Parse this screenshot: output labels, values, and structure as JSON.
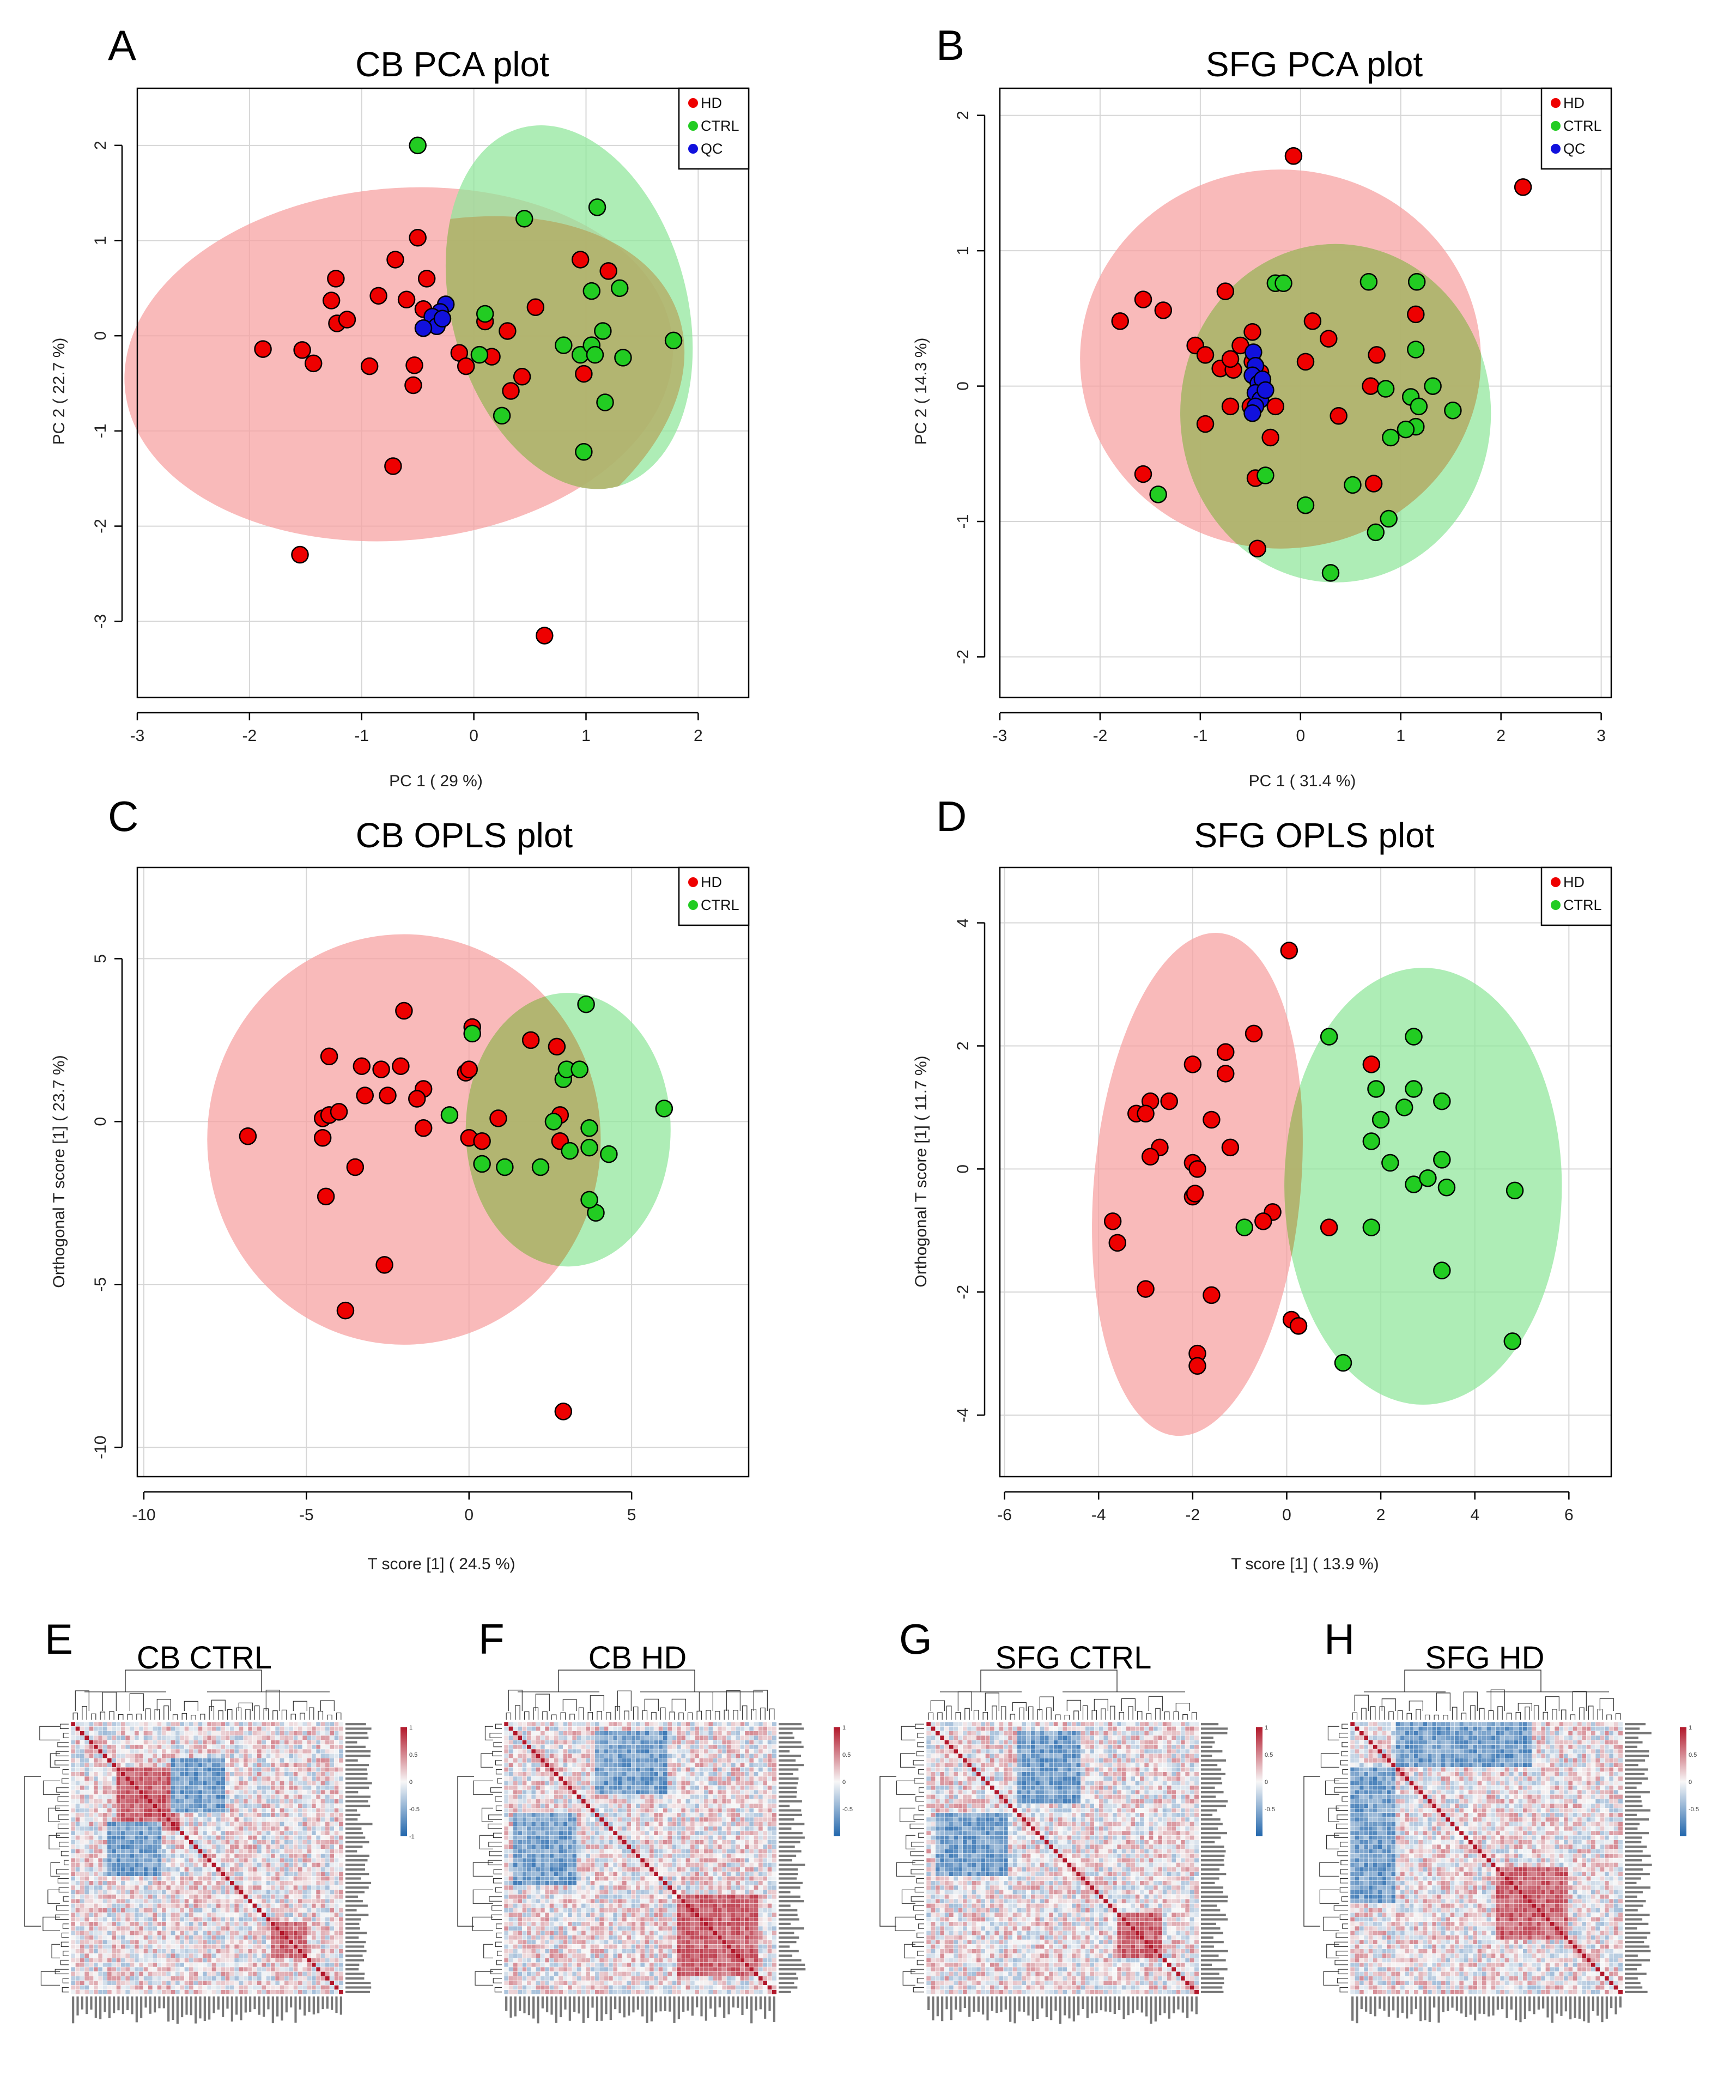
{
  "panels": [
    {
      "letter": "A",
      "title": "CB PCA plot",
      "xlabel": "PC 1 ( 29 %)",
      "ylabel": "PC 2 ( 22.7 %)",
      "xlim": [
        -3,
        2.45
      ],
      "ylim": [
        -3.8,
        2.6
      ],
      "xticks": [
        -3,
        -2,
        -1,
        0,
        1,
        2
      ],
      "yticks": [
        -3,
        -2,
        -1,
        0,
        1,
        2
      ],
      "legend": [
        "HD",
        "CTRL",
        "QC"
      ],
      "ellipses": [
        {
          "group": "HD",
          "cx": -0.67,
          "cy": -0.3,
          "rx": 2.45,
          "ry": 1.85,
          "angle": 5
        },
        {
          "group": "CTRL",
          "cx": 0.85,
          "cy": 0.3,
          "rx": 1.05,
          "ry": 1.95,
          "angle": 15
        }
      ],
      "points": {
        "HD": [
          [
            -0.5,
            1.03
          ],
          [
            -0.7,
            0.8
          ],
          [
            -1.23,
            0.6
          ],
          [
            -1.27,
            0.37
          ],
          [
            -1.22,
            0.13
          ],
          [
            -1.13,
            0.17
          ],
          [
            -0.42,
            0.6
          ],
          [
            -0.85,
            0.42
          ],
          [
            -0.6,
            0.38
          ],
          [
            -0.45,
            0.28
          ],
          [
            -0.35,
            0.18
          ],
          [
            -1.88,
            -0.14
          ],
          [
            -1.53,
            -0.15
          ],
          [
            -1.43,
            -0.29
          ],
          [
            -0.93,
            -0.32
          ],
          [
            -0.53,
            -0.31
          ],
          [
            -0.54,
            -0.52
          ],
          [
            -0.72,
            -1.37
          ],
          [
            -1.55,
            -2.3
          ],
          [
            0.63,
            -3.15
          ],
          [
            0.1,
            0.15
          ],
          [
            0.16,
            -0.22
          ],
          [
            0.3,
            0.05
          ],
          [
            -0.13,
            -0.18
          ],
          [
            -0.07,
            -0.32
          ],
          [
            0.43,
            -0.43
          ],
          [
            0.33,
            -0.58
          ],
          [
            0.55,
            0.3
          ],
          [
            0.95,
            0.8
          ],
          [
            1.2,
            0.68
          ],
          [
            0.98,
            -0.4
          ]
        ],
        "CTRL": [
          [
            -0.5,
            2.0
          ],
          [
            0.45,
            1.23
          ],
          [
            1.1,
            1.35
          ],
          [
            1.05,
            0.47
          ],
          [
            1.3,
            0.5
          ],
          [
            0.1,
            0.23
          ],
          [
            0.05,
            -0.2
          ],
          [
            0.25,
            -0.84
          ],
          [
            0.8,
            -0.1
          ],
          [
            0.95,
            -0.2
          ],
          [
            1.05,
            -0.1
          ],
          [
            1.15,
            0.05
          ],
          [
            1.08,
            -0.2
          ],
          [
            1.33,
            -0.23
          ],
          [
            1.17,
            -0.7
          ],
          [
            0.98,
            -1.22
          ],
          [
            1.78,
            -0.05
          ]
        ],
        "QC": [
          [
            -0.25,
            0.33
          ],
          [
            -0.3,
            0.25
          ],
          [
            -0.37,
            0.2
          ],
          [
            -0.33,
            0.1
          ],
          [
            -0.45,
            0.08
          ],
          [
            -0.28,
            0.18
          ]
        ]
      }
    },
    {
      "letter": "B",
      "title": "SFG PCA plot",
      "xlabel": "PC 1 ( 31.4 %)",
      "ylabel": "PC 2 ( 14.3 %)",
      "xlim": [
        -3,
        3.1
      ],
      "ylim": [
        -2.3,
        2.2
      ],
      "xticks": [
        -3,
        -2,
        -1,
        0,
        1,
        2,
        3
      ],
      "yticks": [
        -2,
        -1,
        0,
        1,
        2
      ],
      "legend": [
        "HD",
        "CTRL",
        "QC"
      ],
      "ellipses": [
        {
          "group": "HD",
          "cx": -0.2,
          "cy": 0.2,
          "rx": 2.0,
          "ry": 1.4,
          "angle": 0
        },
        {
          "group": "CTRL",
          "cx": 0.35,
          "cy": -0.2,
          "rx": 1.55,
          "ry": 1.25,
          "angle": 0
        }
      ],
      "points": {
        "HD": [
          [
            -0.07,
            1.7
          ],
          [
            2.22,
            1.47
          ],
          [
            -1.57,
            0.64
          ],
          [
            -1.37,
            0.56
          ],
          [
            -1.8,
            0.48
          ],
          [
            -1.05,
            0.3
          ],
          [
            -0.75,
            0.7
          ],
          [
            -0.95,
            0.23
          ],
          [
            -0.8,
            0.13
          ],
          [
            -0.67,
            0.12
          ],
          [
            -0.7,
            0.2
          ],
          [
            -0.6,
            0.3
          ],
          [
            -0.48,
            0.4
          ],
          [
            -0.48,
            0.18
          ],
          [
            -0.4,
            0.1
          ],
          [
            -0.95,
            -0.28
          ],
          [
            -0.7,
            -0.15
          ],
          [
            -0.5,
            -0.15
          ],
          [
            -0.25,
            -0.15
          ],
          [
            -0.3,
            -0.38
          ],
          [
            -0.45,
            -0.68
          ],
          [
            -0.43,
            -1.2
          ],
          [
            -1.57,
            -0.65
          ],
          [
            0.12,
            0.48
          ],
          [
            0.28,
            0.35
          ],
          [
            0.05,
            0.18
          ],
          [
            0.38,
            -0.22
          ],
          [
            0.7,
            0.0
          ],
          [
            0.76,
            0.23
          ],
          [
            1.15,
            0.53
          ],
          [
            0.73,
            -0.72
          ]
        ],
        "CTRL": [
          [
            -0.25,
            0.76
          ],
          [
            -0.17,
            0.76
          ],
          [
            0.68,
            0.77
          ],
          [
            1.16,
            0.77
          ],
          [
            1.15,
            0.27
          ],
          [
            0.85,
            -0.02
          ],
          [
            1.32,
            0.0
          ],
          [
            1.1,
            -0.08
          ],
          [
            1.18,
            -0.15
          ],
          [
            1.52,
            -0.18
          ],
          [
            1.15,
            -0.3
          ],
          [
            1.05,
            -0.32
          ],
          [
            0.9,
            -0.38
          ],
          [
            -0.35,
            -0.66
          ],
          [
            -1.42,
            -0.8
          ],
          [
            0.05,
            -0.88
          ],
          [
            0.52,
            -0.73
          ],
          [
            0.88,
            -0.98
          ],
          [
            0.75,
            -1.08
          ],
          [
            0.3,
            -1.38
          ]
        ],
        "QC": [
          [
            -0.47,
            0.25
          ],
          [
            -0.45,
            0.15
          ],
          [
            -0.48,
            0.08
          ],
          [
            -0.42,
            0.02
          ],
          [
            -0.38,
            0.05
          ],
          [
            -0.45,
            -0.05
          ],
          [
            -0.4,
            -0.1
          ],
          [
            -0.45,
            -0.15
          ],
          [
            -0.48,
            -0.2
          ],
          [
            -0.35,
            -0.03
          ]
        ]
      }
    },
    {
      "letter": "C",
      "title": "CB OPLS plot",
      "xlabel": "T score [1] ( 24.5 %)",
      "ylabel": "Orthogonal T score [1] ( 23.7 %)",
      "xlim": [
        -10.2,
        8.6
      ],
      "ylim": [
        -10.9,
        7.8
      ],
      "xticks": [
        -10,
        -5,
        0,
        5
      ],
      "yticks": [
        -10,
        -5,
        0,
        5
      ],
      "legend": [
        "HD",
        "CTRL"
      ],
      "ellipses": [
        {
          "group": "HD",
          "cx": -2.0,
          "cy": -0.55,
          "rx": 6.05,
          "ry": 6.3,
          "angle": 0
        },
        {
          "group": "CTRL",
          "cx": 3.05,
          "cy": -0.25,
          "rx": 3.15,
          "ry": 4.2,
          "angle": 0
        }
      ],
      "points": {
        "HD": [
          [
            -6.8,
            -0.45
          ],
          [
            -4.5,
            -0.5
          ],
          [
            -4.5,
            0.1
          ],
          [
            -4.3,
            0.2
          ],
          [
            -4.3,
            2.0
          ],
          [
            -4.0,
            0.3
          ],
          [
            -3.3,
            1.7
          ],
          [
            -3.2,
            0.8
          ],
          [
            -2.7,
            1.6
          ],
          [
            -2.5,
            0.8
          ],
          [
            -2.1,
            1.7
          ],
          [
            -2.0,
            3.4
          ],
          [
            -1.4,
            1.0
          ],
          [
            -1.4,
            -0.2
          ],
          [
            -1.6,
            0.7
          ],
          [
            -3.5,
            -1.4
          ],
          [
            -4.4,
            -2.3
          ],
          [
            -2.6,
            -4.4
          ],
          [
            -3.8,
            -5.8
          ],
          [
            -0.1,
            1.5
          ],
          [
            0.1,
            2.9
          ],
          [
            0.0,
            -0.5
          ],
          [
            0.4,
            -0.6
          ],
          [
            0.9,
            0.1
          ],
          [
            1.9,
            2.5
          ],
          [
            2.7,
            2.3
          ],
          [
            2.8,
            0.2
          ],
          [
            2.8,
            -0.6
          ],
          [
            2.9,
            -8.9
          ],
          [
            0.0,
            1.6
          ]
        ],
        "CTRL": [
          [
            0.1,
            2.7
          ],
          [
            -0.6,
            0.2
          ],
          [
            0.4,
            -1.3
          ],
          [
            1.1,
            -1.4
          ],
          [
            2.2,
            -1.4
          ],
          [
            2.6,
            0.0
          ],
          [
            2.9,
            1.3
          ],
          [
            3.0,
            1.6
          ],
          [
            3.4,
            1.6
          ],
          [
            3.6,
            3.6
          ],
          [
            3.7,
            -0.2
          ],
          [
            3.7,
            -0.8
          ],
          [
            3.9,
            -2.8
          ],
          [
            3.7,
            -2.4
          ],
          [
            4.3,
            -1.0
          ],
          [
            3.1,
            -0.9
          ],
          [
            6.0,
            0.4
          ]
        ]
      }
    },
    {
      "letter": "D",
      "title": "SFG OPLS plot",
      "xlabel": "T score [1] ( 13.9 %)",
      "ylabel": "Orthogonal T score [1] ( 11.7 %)",
      "xlim": [
        -6.1,
        6.9
      ],
      "ylim": [
        -5.0,
        4.9
      ],
      "xticks": [
        -6,
        -4,
        -2,
        0,
        2,
        4,
        6
      ],
      "yticks": [
        -4,
        -2,
        0,
        2,
        4
      ],
      "legend": [
        "HD",
        "CTRL"
      ],
      "ellipses": [
        {
          "group": "HD",
          "cx": -1.9,
          "cy": -0.25,
          "rx": 2.2,
          "ry": 4.1,
          "angle": -5
        },
        {
          "group": "CTRL",
          "cx": 2.9,
          "cy": -0.28,
          "rx": 2.95,
          "ry": 3.55,
          "angle": 0
        }
      ],
      "points": {
        "HD": [
          [
            0.05,
            3.55
          ],
          [
            -0.7,
            2.2
          ],
          [
            -1.3,
            1.9
          ],
          [
            -1.3,
            1.55
          ],
          [
            -2.0,
            1.7
          ],
          [
            -1.6,
            0.8
          ],
          [
            -2.5,
            1.1
          ],
          [
            -2.9,
            1.1
          ],
          [
            -3.2,
            0.9
          ],
          [
            -3.0,
            0.9
          ],
          [
            -1.2,
            0.35
          ],
          [
            -2.7,
            0.35
          ],
          [
            -2.9,
            0.2
          ],
          [
            -2.0,
            0.1
          ],
          [
            -1.9,
            0.0
          ],
          [
            -2.0,
            -0.45
          ],
          [
            -1.95,
            -0.4
          ],
          [
            -0.3,
            -0.7
          ],
          [
            -0.5,
            -0.85
          ],
          [
            -3.7,
            -0.85
          ],
          [
            -3.6,
            -1.2
          ],
          [
            -3.0,
            -1.95
          ],
          [
            -1.6,
            -2.05
          ],
          [
            0.1,
            -2.45
          ],
          [
            0.25,
            -2.55
          ],
          [
            -1.9,
            -3.0
          ],
          [
            -1.9,
            -3.2
          ],
          [
            0.9,
            -0.95
          ],
          [
            1.8,
            1.7
          ]
        ],
        "CTRL": [
          [
            0.9,
            2.15
          ],
          [
            2.7,
            2.15
          ],
          [
            1.9,
            1.3
          ],
          [
            2.7,
            1.3
          ],
          [
            3.3,
            1.1
          ],
          [
            2.5,
            1.0
          ],
          [
            2.0,
            0.8
          ],
          [
            1.8,
            0.45
          ],
          [
            2.2,
            0.1
          ],
          [
            2.7,
            -0.25
          ],
          [
            3.0,
            -0.15
          ],
          [
            3.3,
            0.15
          ],
          [
            3.4,
            -0.3
          ],
          [
            1.8,
            -0.95
          ],
          [
            -0.9,
            -0.95
          ],
          [
            4.85,
            -0.35
          ],
          [
            3.3,
            -1.65
          ],
          [
            4.8,
            -2.8
          ],
          [
            1.2,
            -3.15
          ]
        ]
      }
    }
  ],
  "heatmaps": [
    {
      "letter": "E",
      "title": "CB CTRL",
      "cluster": [
        [
          10,
          24
        ],
        [
          44,
          52
        ]
      ],
      "neg": [
        [
          8,
          20,
          22,
          34
        ]
      ],
      "seed": 11,
      "scale_labels": [
        "1",
        "0.5",
        "0",
        "-0.5",
        "-1"
      ]
    },
    {
      "letter": "F",
      "title": "CB HD",
      "cluster": [
        [
          38,
          56
        ]
      ],
      "neg": [
        [
          2,
          16,
          20,
          36
        ]
      ],
      "seed": 23,
      "scale_labels": [
        "1",
        "0.5",
        "0",
        "-0.5"
      ]
    },
    {
      "letter": "G",
      "title": "SFG CTRL",
      "cluster": [
        [
          42,
          52
        ]
      ],
      "neg": [
        [
          20,
          34,
          2,
          18
        ],
        [
          2,
          18,
          20,
          34
        ]
      ],
      "seed": 37,
      "scale_labels": [
        "1",
        "0.5",
        "0",
        "-0.5"
      ]
    },
    {
      "letter": "H",
      "title": "SFG HD",
      "cluster": [
        [
          32,
          48
        ]
      ],
      "neg": [
        [
          0,
          10,
          10,
          40
        ]
      ],
      "seed": 53,
      "scale_labels": [
        "1",
        "0.5",
        "0",
        "-0.5"
      ]
    }
  ],
  "colors": {
    "HD": "#ee0000",
    "CTRL": "#22cc22",
    "QC": "#1111dd",
    "HD_fill": "#f7a0a0",
    "CTRL_fill": "#8fe69a",
    "QC_fill": "#8a8aee",
    "heat_pos": "#b2182b",
    "heat_neg": "#2166ac",
    "heat_mid": "#f7f7f7"
  }
}
